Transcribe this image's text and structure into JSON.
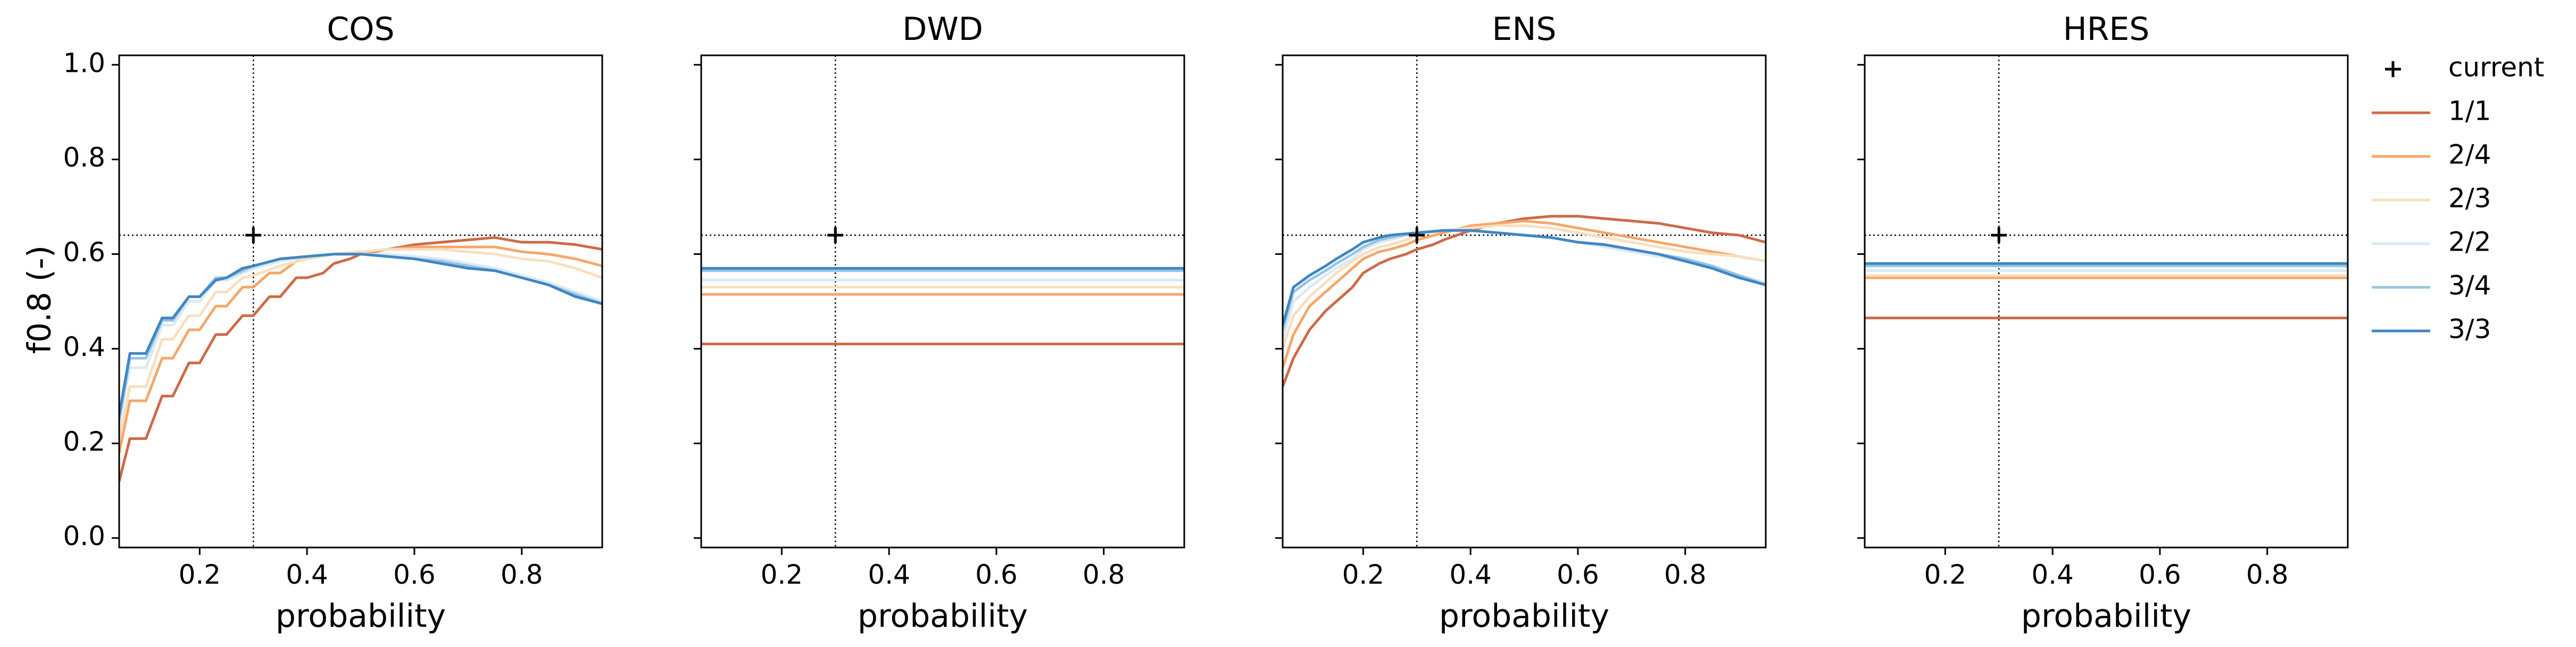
{
  "chart_data": {
    "type": "line",
    "ylabel": "f0.8 (-)",
    "xlabel": "probability",
    "xlim": [
      0.05,
      0.95
    ],
    "ylim": [
      -0.02,
      1.02
    ],
    "xticks": [
      0.2,
      0.4,
      0.6,
      0.8
    ],
    "xtick_labels": [
      "0.2",
      "0.4",
      "0.6",
      "0.8"
    ],
    "yticks": [
      0.0,
      0.2,
      0.4,
      0.6,
      0.8,
      1.0
    ],
    "ytick_labels": [
      "0.0",
      "0.2",
      "0.4",
      "0.6",
      "0.8",
      "1.0"
    ],
    "shared_y": true,
    "grid": false,
    "legend_placement": "outside right",
    "reference_lines": {
      "x": 0.3,
      "y": 0.64,
      "style": "dotted",
      "color": "#000000"
    },
    "current_marker": {
      "label": "current",
      "x": 0.3,
      "y": 0.64,
      "marker": "+",
      "color": "#000000"
    },
    "series_names": [
      "1/1",
      "2/4",
      "2/3",
      "2/2",
      "3/4",
      "3/3"
    ],
    "series_colors": [
      "#cc6a48",
      "#f4a76a",
      "#f8dfc0",
      "#dbe9f3",
      "#98c4e0",
      "#3f86c3"
    ],
    "panels": [
      {
        "title": "COS",
        "series": [
          {
            "name": "1/1",
            "x": [
              0.05,
              0.07,
              0.1,
              0.13,
              0.15,
              0.18,
              0.2,
              0.23,
              0.25,
              0.28,
              0.3,
              0.33,
              0.35,
              0.38,
              0.4,
              0.43,
              0.45,
              0.48,
              0.5,
              0.55,
              0.6,
              0.65,
              0.7,
              0.75,
              0.8,
              0.85,
              0.9,
              0.95
            ],
            "y": [
              0.12,
              0.21,
              0.21,
              0.3,
              0.3,
              0.37,
              0.37,
              0.43,
              0.43,
              0.47,
              0.47,
              0.51,
              0.51,
              0.55,
              0.55,
              0.56,
              0.58,
              0.59,
              0.6,
              0.61,
              0.62,
              0.625,
              0.63,
              0.635,
              0.625,
              0.625,
              0.62,
              0.61
            ]
          },
          {
            "name": "2/4",
            "x": [
              0.05,
              0.07,
              0.1,
              0.13,
              0.15,
              0.18,
              0.2,
              0.23,
              0.25,
              0.28,
              0.3,
              0.33,
              0.35,
              0.38,
              0.4,
              0.45,
              0.5,
              0.55,
              0.6,
              0.65,
              0.7,
              0.75,
              0.8,
              0.85,
              0.9,
              0.95
            ],
            "y": [
              0.18,
              0.29,
              0.29,
              0.38,
              0.38,
              0.44,
              0.44,
              0.49,
              0.49,
              0.53,
              0.53,
              0.56,
              0.56,
              0.585,
              0.59,
              0.6,
              0.605,
              0.61,
              0.615,
              0.615,
              0.615,
              0.615,
              0.605,
              0.6,
              0.59,
              0.575
            ]
          },
          {
            "name": "2/3",
            "x": [
              0.05,
              0.07,
              0.1,
              0.13,
              0.15,
              0.18,
              0.2,
              0.23,
              0.25,
              0.28,
              0.3,
              0.35,
              0.4,
              0.45,
              0.5,
              0.55,
              0.6,
              0.65,
              0.7,
              0.75,
              0.8,
              0.85,
              0.9,
              0.95
            ],
            "y": [
              0.21,
              0.32,
              0.32,
              0.42,
              0.42,
              0.47,
              0.47,
              0.52,
              0.52,
              0.55,
              0.555,
              0.575,
              0.59,
              0.6,
              0.605,
              0.61,
              0.61,
              0.61,
              0.605,
              0.6,
              0.59,
              0.585,
              0.57,
              0.55
            ]
          },
          {
            "name": "2/2",
            "x": [
              0.05,
              0.07,
              0.1,
              0.13,
              0.15,
              0.18,
              0.2,
              0.23,
              0.25,
              0.3,
              0.35,
              0.4,
              0.45,
              0.5,
              0.55,
              0.6,
              0.65,
              0.7,
              0.75,
              0.8,
              0.85,
              0.9,
              0.95
            ],
            "y": [
              0.24,
              0.36,
              0.36,
              0.45,
              0.45,
              0.5,
              0.5,
              0.545,
              0.545,
              0.57,
              0.585,
              0.595,
              0.6,
              0.6,
              0.6,
              0.595,
              0.59,
              0.58,
              0.57,
              0.555,
              0.54,
              0.52,
              0.5
            ]
          },
          {
            "name": "3/4",
            "x": [
              0.05,
              0.07,
              0.1,
              0.13,
              0.15,
              0.18,
              0.2,
              0.23,
              0.25,
              0.3,
              0.35,
              0.4,
              0.45,
              0.5,
              0.55,
              0.6,
              0.65,
              0.7,
              0.75,
              0.8,
              0.85,
              0.9,
              0.95
            ],
            "y": [
              0.25,
              0.38,
              0.38,
              0.46,
              0.46,
              0.51,
              0.51,
              0.55,
              0.55,
              0.575,
              0.59,
              0.595,
              0.6,
              0.6,
              0.595,
              0.59,
              0.585,
              0.575,
              0.565,
              0.55,
              0.535,
              0.515,
              0.495
            ]
          },
          {
            "name": "3/3",
            "x": [
              0.05,
              0.07,
              0.1,
              0.13,
              0.15,
              0.18,
              0.2,
              0.23,
              0.25,
              0.28,
              0.3,
              0.35,
              0.4,
              0.45,
              0.5,
              0.55,
              0.6,
              0.65,
              0.7,
              0.75,
              0.8,
              0.85,
              0.9,
              0.95
            ],
            "y": [
              0.26,
              0.39,
              0.39,
              0.465,
              0.465,
              0.51,
              0.51,
              0.545,
              0.55,
              0.57,
              0.575,
              0.59,
              0.595,
              0.6,
              0.6,
              0.595,
              0.59,
              0.58,
              0.57,
              0.565,
              0.55,
              0.535,
              0.51,
              0.495
            ]
          }
        ]
      },
      {
        "title": "DWD",
        "series": [
          {
            "name": "1/1",
            "x": [
              0.05,
              0.95
            ],
            "y": [
              0.41,
              0.41
            ]
          },
          {
            "name": "2/4",
            "x": [
              0.05,
              0.95
            ],
            "y": [
              0.515,
              0.515
            ]
          },
          {
            "name": "2/3",
            "x": [
              0.05,
              0.95
            ],
            "y": [
              0.53,
              0.53
            ]
          },
          {
            "name": "2/2",
            "x": [
              0.05,
              0.95
            ],
            "y": [
              0.545,
              0.545
            ]
          },
          {
            "name": "3/4",
            "x": [
              0.05,
              0.95
            ],
            "y": [
              0.565,
              0.565
            ]
          },
          {
            "name": "3/3",
            "x": [
              0.05,
              0.95
            ],
            "y": [
              0.57,
              0.57
            ]
          }
        ]
      },
      {
        "title": "ENS",
        "series": [
          {
            "name": "1/1",
            "x": [
              0.05,
              0.07,
              0.1,
              0.13,
              0.15,
              0.18,
              0.2,
              0.23,
              0.25,
              0.28,
              0.3,
              0.33,
              0.35,
              0.4,
              0.45,
              0.5,
              0.55,
              0.6,
              0.65,
              0.7,
              0.75,
              0.8,
              0.85,
              0.9,
              0.95
            ],
            "y": [
              0.32,
              0.38,
              0.44,
              0.48,
              0.5,
              0.53,
              0.56,
              0.58,
              0.59,
              0.6,
              0.61,
              0.62,
              0.63,
              0.65,
              0.665,
              0.675,
              0.68,
              0.68,
              0.675,
              0.67,
              0.665,
              0.655,
              0.645,
              0.64,
              0.625
            ]
          },
          {
            "name": "2/4",
            "x": [
              0.05,
              0.07,
              0.1,
              0.13,
              0.15,
              0.18,
              0.2,
              0.23,
              0.25,
              0.28,
              0.3,
              0.35,
              0.4,
              0.45,
              0.5,
              0.55,
              0.6,
              0.65,
              0.7,
              0.75,
              0.8,
              0.85,
              0.9,
              0.95
            ],
            "y": [
              0.36,
              0.43,
              0.49,
              0.52,
              0.54,
              0.57,
              0.59,
              0.605,
              0.61,
              0.62,
              0.63,
              0.645,
              0.66,
              0.665,
              0.67,
              0.665,
              0.655,
              0.645,
              0.635,
              0.625,
              0.615,
              0.605,
              0.595,
              0.585
            ]
          },
          {
            "name": "2/3",
            "x": [
              0.05,
              0.07,
              0.1,
              0.13,
              0.15,
              0.18,
              0.2,
              0.23,
              0.25,
              0.28,
              0.3,
              0.35,
              0.4,
              0.45,
              0.5,
              0.55,
              0.6,
              0.65,
              0.7,
              0.75,
              0.8,
              0.85,
              0.9,
              0.95
            ],
            "y": [
              0.4,
              0.47,
              0.51,
              0.54,
              0.56,
              0.585,
              0.6,
              0.615,
              0.62,
              0.63,
              0.64,
              0.65,
              0.655,
              0.66,
              0.66,
              0.655,
              0.645,
              0.635,
              0.625,
              0.615,
              0.605,
              0.6,
              0.595,
              0.585
            ]
          },
          {
            "name": "2/2",
            "x": [
              0.05,
              0.07,
              0.1,
              0.13,
              0.15,
              0.18,
              0.2,
              0.23,
              0.25,
              0.3,
              0.35,
              0.4,
              0.45,
              0.5,
              0.55,
              0.6,
              0.65,
              0.7,
              0.75,
              0.8,
              0.85,
              0.9,
              0.95
            ],
            "y": [
              0.42,
              0.5,
              0.53,
              0.555,
              0.57,
              0.59,
              0.61,
              0.625,
              0.63,
              0.645,
              0.65,
              0.65,
              0.645,
              0.64,
              0.635,
              0.625,
              0.615,
              0.605,
              0.595,
              0.585,
              0.57,
              0.555,
              0.54
            ]
          },
          {
            "name": "3/4",
            "x": [
              0.05,
              0.07,
              0.1,
              0.13,
              0.15,
              0.18,
              0.2,
              0.23,
              0.25,
              0.3,
              0.35,
              0.4,
              0.45,
              0.5,
              0.55,
              0.6,
              0.65,
              0.7,
              0.75,
              0.8,
              0.85,
              0.9,
              0.95
            ],
            "y": [
              0.44,
              0.52,
              0.545,
              0.565,
              0.58,
              0.6,
              0.615,
              0.63,
              0.635,
              0.645,
              0.65,
              0.65,
              0.645,
              0.64,
              0.635,
              0.625,
              0.62,
              0.61,
              0.6,
              0.59,
              0.575,
              0.555,
              0.535
            ]
          },
          {
            "name": "3/3",
            "x": [
              0.05,
              0.07,
              0.1,
              0.13,
              0.15,
              0.18,
              0.2,
              0.23,
              0.25,
              0.3,
              0.35,
              0.4,
              0.45,
              0.5,
              0.55,
              0.6,
              0.65,
              0.7,
              0.75,
              0.8,
              0.85,
              0.9,
              0.95
            ],
            "y": [
              0.45,
              0.53,
              0.555,
              0.575,
              0.59,
              0.61,
              0.625,
              0.635,
              0.64,
              0.645,
              0.65,
              0.65,
              0.645,
              0.64,
              0.635,
              0.625,
              0.62,
              0.61,
              0.6,
              0.585,
              0.57,
              0.55,
              0.535
            ]
          }
        ]
      },
      {
        "title": "HRES",
        "series": [
          {
            "name": "1/1",
            "x": [
              0.05,
              0.95
            ],
            "y": [
              0.465,
              0.465
            ]
          },
          {
            "name": "2/4",
            "x": [
              0.05,
              0.95
            ],
            "y": [
              0.55,
              0.55
            ]
          },
          {
            "name": "2/3",
            "x": [
              0.05,
              0.95
            ],
            "y": [
              0.555,
              0.555
            ]
          },
          {
            "name": "2/2",
            "x": [
              0.05,
              0.95
            ],
            "y": [
              0.565,
              0.565
            ]
          },
          {
            "name": "3/4",
            "x": [
              0.05,
              0.95
            ],
            "y": [
              0.575,
              0.575
            ]
          },
          {
            "name": "3/3",
            "x": [
              0.05,
              0.95
            ],
            "y": [
              0.58,
              0.58
            ]
          }
        ]
      }
    ]
  }
}
